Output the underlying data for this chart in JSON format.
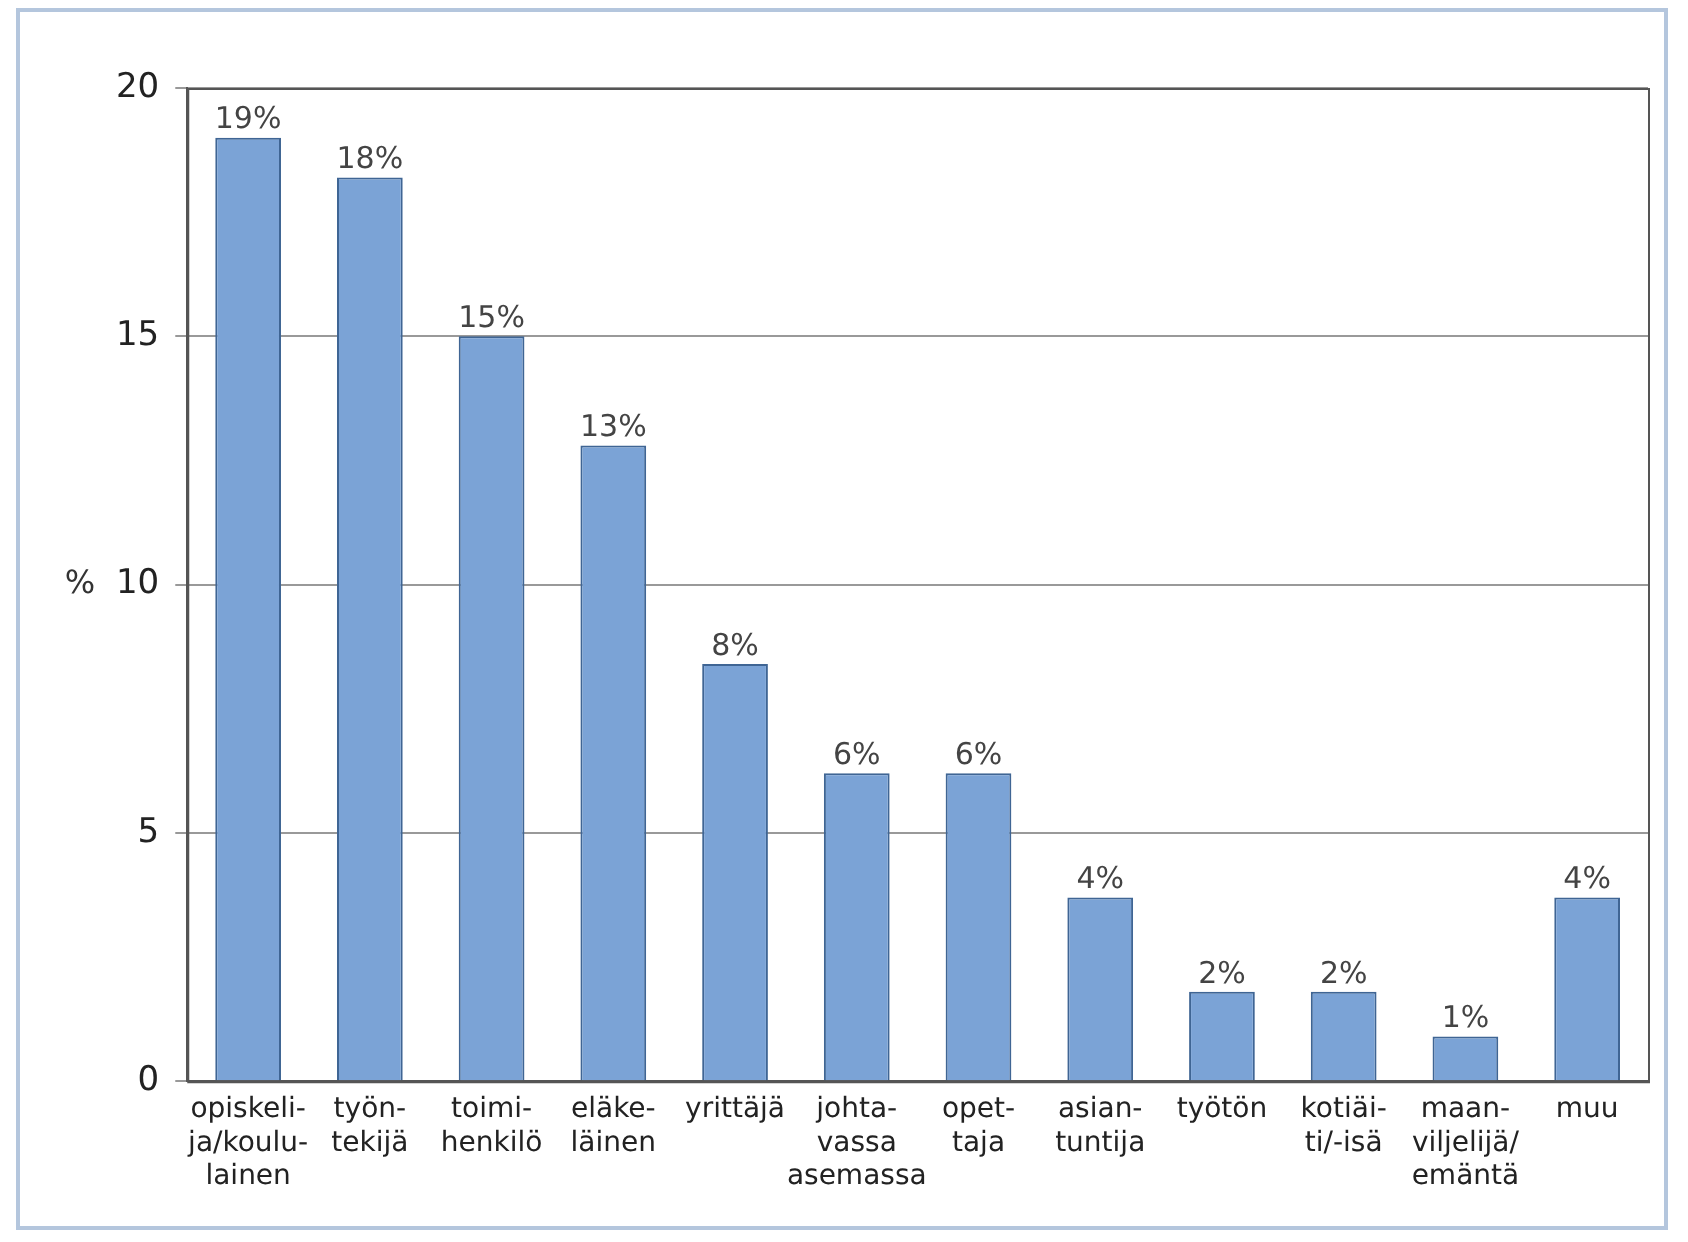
{
  "chart_data": {
    "type": "bar",
    "ylabel": "%",
    "categories": [
      "opiskeli-\nja/koulu-\nlainen",
      "työn-\ntekijä",
      "toimi-\nhenkilö",
      "eläke-\nläinen",
      "yrittäjä",
      "johta-\nvassa\nasemassa",
      "opet-\ntaja",
      "asian-\ntuntija",
      "työtön",
      "kotiäi-\nti/-isä",
      "maan-\nviljelijä/\nemäntä",
      "muu"
    ],
    "values": [
      19.0,
      18.2,
      15.0,
      12.8,
      8.4,
      6.2,
      6.2,
      3.7,
      1.8,
      1.8,
      0.9,
      3.7
    ],
    "value_labels": [
      "19%",
      "18%",
      "15%",
      "13%",
      "8%",
      "6%",
      "6%",
      "4%",
      "2%",
      "2%",
      "1%",
      "4%"
    ],
    "color": "#7ba3d6",
    "ylim": [
      0,
      20
    ],
    "yticks": [
      0,
      5,
      10,
      15,
      20
    ],
    "grid": "y"
  }
}
